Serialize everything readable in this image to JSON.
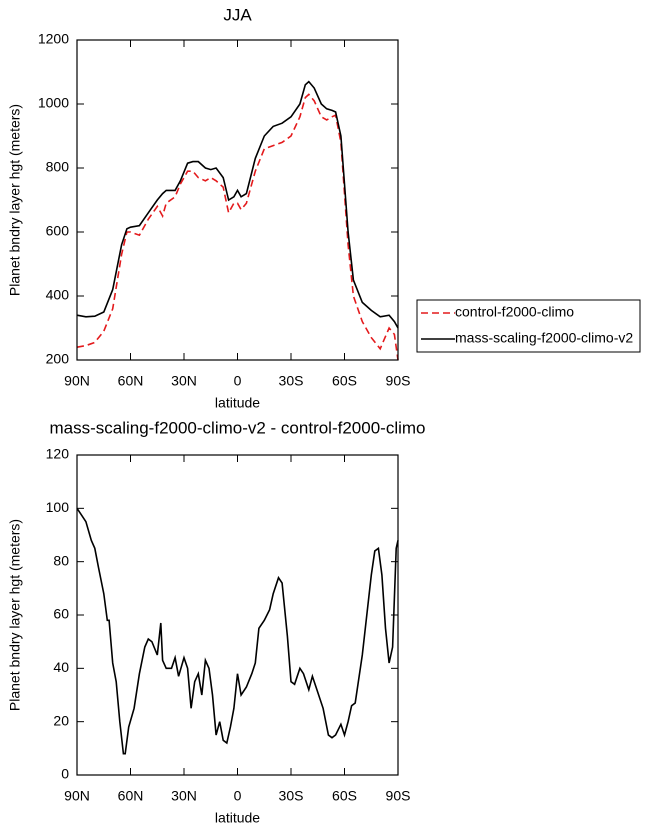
{
  "chart_data": [
    {
      "type": "line",
      "title": "JJA",
      "xlabel": "latitude",
      "ylabel": "Planet bndry layer hgt (meters)",
      "x": [
        90,
        85,
        80,
        75,
        70,
        65,
        62,
        60,
        55,
        50,
        45,
        42,
        40,
        35,
        32,
        28,
        25,
        22,
        18,
        15,
        12,
        8,
        5,
        2,
        0,
        -2,
        -5,
        -10,
        -15,
        -20,
        -25,
        -30,
        -35,
        -38,
        -40,
        -43,
        -47,
        -50,
        -53,
        -55,
        -58,
        -60,
        -62,
        -65,
        -70,
        -75,
        -80,
        -85,
        -88,
        -90
      ],
      "series": [
        {
          "name": "control-f2000-climo",
          "color": "#e41a1c",
          "dash": "dashed",
          "values": [
            240,
            245,
            255,
            290,
            360,
            530,
            600,
            600,
            590,
            640,
            680,
            650,
            690,
            710,
            750,
            790,
            790,
            770,
            760,
            770,
            760,
            740,
            660,
            690,
            690,
            670,
            690,
            790,
            860,
            870,
            880,
            900,
            960,
            1020,
            1030,
            1010,
            960,
            950,
            960,
            965,
            880,
            720,
            560,
            400,
            320,
            270,
            235,
            300,
            280,
            200
          ]
        },
        {
          "name": "mass-scaling-f2000-climo-v2",
          "color": "#000000",
          "dash": "solid",
          "values": [
            340,
            335,
            337,
            350,
            420,
            560,
            610,
            615,
            620,
            660,
            700,
            720,
            730,
            730,
            760,
            815,
            820,
            820,
            800,
            795,
            800,
            770,
            700,
            710,
            730,
            710,
            720,
            830,
            900,
            930,
            940,
            960,
            1000,
            1060,
            1070,
            1050,
            1000,
            985,
            980,
            975,
            900,
            750,
            600,
            450,
            380,
            355,
            335,
            340,
            320,
            300
          ]
        }
      ],
      "xlim": [
        90,
        -90
      ],
      "xticks": [
        {
          "value": 90,
          "label": "90N"
        },
        {
          "value": 60,
          "label": "60N"
        },
        {
          "value": 30,
          "label": "30N"
        },
        0,
        {
          "value": -30,
          "label": "30S"
        },
        {
          "value": -60,
          "label": "60S"
        },
        {
          "value": -90,
          "label": "90S"
        }
      ],
      "ylim": [
        200,
        1200
      ],
      "yticks": [
        200,
        400,
        600,
        800,
        1000,
        1200
      ],
      "legend": "right"
    },
    {
      "type": "line",
      "title": "mass-scaling-f2000-climo-v2 - control-f2000-climo",
      "xlabel": "latitude",
      "ylabel": "Planet bndry layer hgt (meters)",
      "x": [
        90,
        88,
        85,
        82,
        80,
        78,
        75,
        73,
        72,
        70,
        68,
        66,
        64,
        63,
        61,
        58,
        55,
        52,
        50,
        48,
        45,
        43,
        42,
        40,
        37,
        35,
        33,
        30,
        28,
        26,
        24,
        22,
        20,
        18,
        16,
        14,
        12,
        10,
        8,
        6,
        4,
        2,
        0,
        -2,
        -5,
        -8,
        -10,
        -12,
        -15,
        -18,
        -20,
        -23,
        -25,
        -28,
        -30,
        -32,
        -35,
        -37,
        -40,
        -42,
        -44,
        -48,
        -51,
        -53,
        -55,
        -58,
        -60,
        -62,
        -64,
        -66,
        -70,
        -75,
        -77,
        -79,
        -81,
        -83,
        -85,
        -87,
        -89,
        -90
      ],
      "series": [
        {
          "color": "#000000",
          "dash": "solid",
          "values": [
            100,
            98,
            95,
            88,
            85,
            78,
            68,
            58,
            58,
            42,
            35,
            20,
            8,
            8,
            18,
            25,
            38,
            48,
            51,
            50,
            45,
            57,
            43,
            40,
            40,
            44,
            37,
            44,
            40,
            25,
            35,
            38,
            30,
            43,
            40,
            30,
            15,
            20,
            13,
            12,
            18,
            25,
            38,
            30,
            33,
            38,
            42,
            55,
            58,
            62,
            68,
            74,
            72,
            52,
            35,
            34,
            40,
            38,
            32,
            37,
            33,
            25,
            15,
            14,
            15,
            19,
            15,
            20,
            26,
            27,
            45,
            75,
            84,
            85,
            75,
            55,
            42,
            48,
            85,
            88
          ]
        }
      ],
      "xlim": [
        90,
        -90
      ],
      "xticks": [
        {
          "value": 90,
          "label": "90N"
        },
        {
          "value": 60,
          "label": "60N"
        },
        {
          "value": 30,
          "label": "30N"
        },
        0,
        {
          "value": -30,
          "label": "30S"
        },
        {
          "value": -60,
          "label": "60S"
        },
        {
          "value": -90,
          "label": "90S"
        }
      ],
      "ylim": [
        0,
        120
      ],
      "yticks": [
        0,
        20,
        40,
        60,
        80,
        100,
        120
      ]
    }
  ]
}
